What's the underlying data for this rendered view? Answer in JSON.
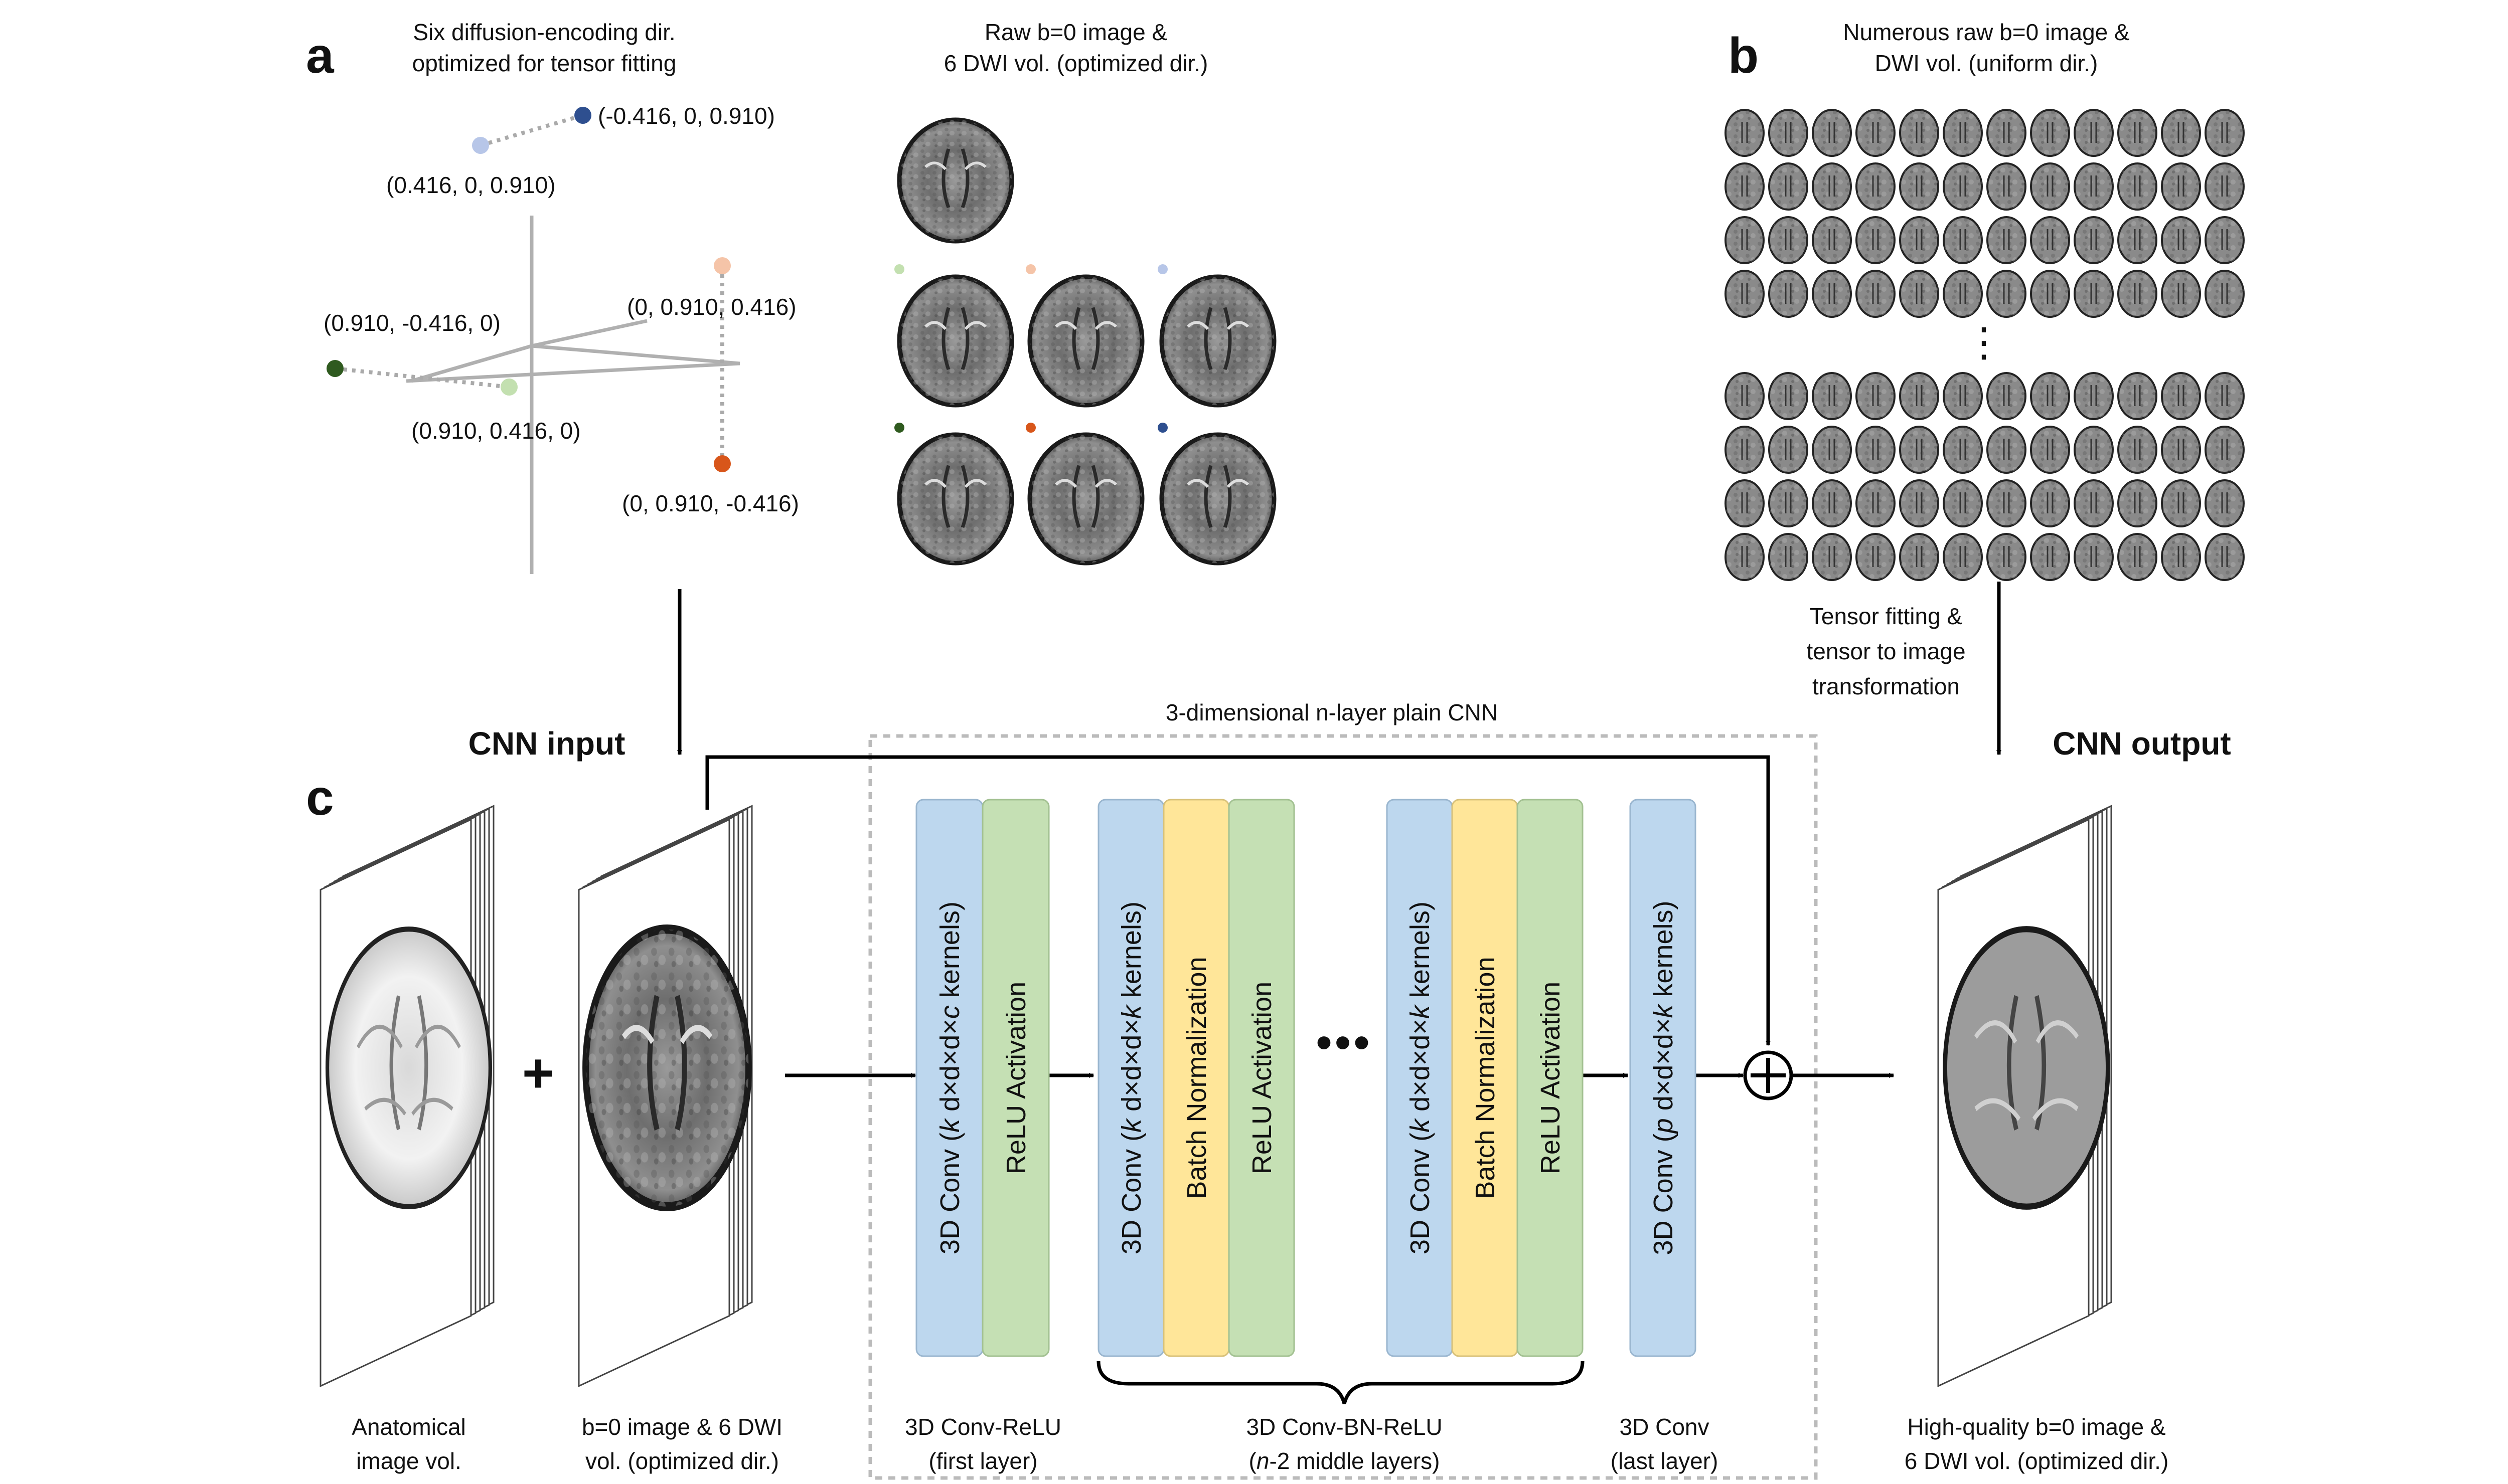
{
  "panels": {
    "a": {
      "letter": "a",
      "title_line1": "Six diffusion-encoding dir.",
      "title_line2": "optimized for tensor fitting",
      "raw_title_line1": "Raw b=0 image &",
      "raw_title_line2": "6 DWI vol. (optimized dir.)",
      "points": [
        {
          "label": "(-0.416, 0, 0.910)",
          "color": "#2e4f8f"
        },
        {
          "label": "(0.416, 0, 0.910)",
          "color": "#b7c6e8"
        },
        {
          "label": "(0, 0.910, 0.416)",
          "color": "#f5c4a8"
        },
        {
          "label": "(0.910, -0.416, 0)",
          "color": "#2f5a1f"
        },
        {
          "label": "(0.910, 0.416, 0)",
          "color": "#c3e0b0"
        },
        {
          "label": "(0, 0.910, -0.416)",
          "color": "#d8561a"
        }
      ]
    },
    "b": {
      "letter": "b",
      "title_line1": "Numerous raw b=0 image &",
      "title_line2": "DWI vol. (uniform dir.)",
      "ellipsis": "⋮",
      "tensor_line1": "Tensor fitting &",
      "tensor_line2": "tensor to image",
      "tensor_line3": "transformation"
    },
    "c": {
      "letter": "c",
      "cnn_input": "CNN input",
      "cnn_output": "CNN output",
      "cnn_title": "3-dimensional n-layer plain CNN",
      "plus": "+",
      "dots": "•••",
      "layers": {
        "first_conv": {
          "pre": "3D Conv (",
          "k": "k",
          "mid": " d×d×d×",
          "c": "c",
          "post": " kernels)"
        },
        "first_relu": "ReLU Activation",
        "mid_conv": {
          "pre": "3D Conv (",
          "k": "k",
          "mid": " d×d×d×",
          "c": "k",
          "post": " kernels)"
        },
        "mid_bn": "Batch Normalization",
        "mid_relu": "ReLU Activation",
        "last_conv": {
          "pre": "3D Conv (",
          "k": "p",
          "mid": " d×d×d×",
          "c": "k",
          "post": " kernels)"
        }
      },
      "captions": {
        "anat_line1": "Anatomical",
        "anat_line2": "image vol.",
        "input_line1": "b=0 image & 6 DWI",
        "input_line2": "vol. (optimized dir.)",
        "first_line1": "3D Conv-ReLU",
        "first_line2": "(first layer)",
        "middle_line1": "3D Conv-BN-ReLU",
        "middle_line2_n": "n",
        "middle_line2_rest": "-2 middle layers)",
        "last_line1": "3D Conv",
        "last_line2": "(last layer)",
        "output_line1": "High-quality b=0 image &",
        "output_line2": "6 DWI vol. (optimized dir.)"
      }
    }
  },
  "colors": {
    "conv_blue": "#bdd7ee",
    "relu_green": "#c5e0b4",
    "bn_yellow": "#ffe699",
    "axis_gray": "#b0b0b0",
    "dashed_gray": "#bbbbbb"
  }
}
